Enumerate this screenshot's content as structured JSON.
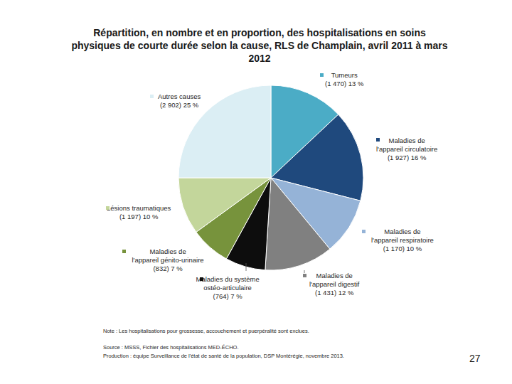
{
  "chart_data": {
    "type": "pie",
    "title": "Répartition, en nombre et en proportion, des hospitalisations en soins physiques de courte durée selon la cause, RLS de Champlain, avril 2011 à mars 2012",
    "categories": [
      "Tumeurs",
      "Maladies de l'appareil circulatoire",
      "Maladies de l'appareil respiratoire",
      "Maladies de l'appareil digestif",
      "Maladies du système ostéo-articulaire",
      "Maladies de l'appareil génito-urinaire",
      "Lésions traumatiques",
      "Autres causes"
    ],
    "values": [
      13,
      16,
      10,
      12,
      7,
      7,
      10,
      25
    ],
    "value_labels": [
      "13 %",
      "16 %",
      "10 %",
      "12 %",
      "7 %",
      "7 %",
      "10 %",
      "25 %"
    ],
    "counts": [
      1470,
      1927,
      1170,
      1431,
      764,
      832,
      1197,
      2902
    ],
    "count_labels": [
      "(1 470)",
      "(1 927)",
      "(1 170)",
      "(1 431)",
      "(764)",
      "(832)",
      "(1 197)",
      "(2 902)"
    ],
    "colors": [
      "#4bacc6",
      "#1f497d",
      "#95b3d7",
      "#808080",
      "#0d0d0d",
      "#77933c",
      "#c3d69b",
      "#dbeef4"
    ],
    "data_labels": true,
    "notes": [
      "Note : Les hospitalisations pour grossesse, accouchement et puerpéralité sont exclues.",
      "Source : MSSS, Fichier des hospitalisations MED-ÉCHO.",
      "Production : équipe Surveillance de l'état de santé de la population, DSP Montérégie, novembre 2013."
    ]
  },
  "page": {
    "number": 27
  }
}
